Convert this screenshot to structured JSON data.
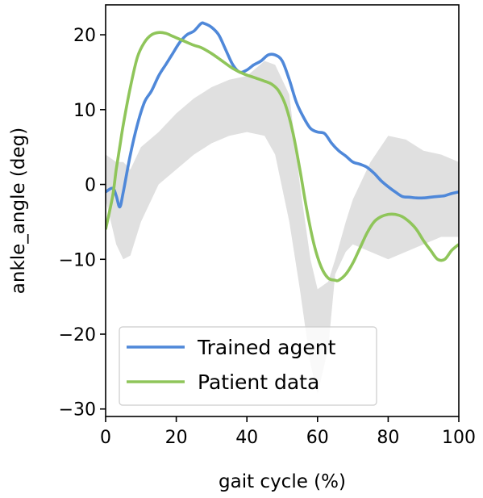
{
  "chart_data": {
    "type": "line",
    "xlabel": "gait cycle (%)",
    "ylabel": "ankle_angle (deg)",
    "xlim": [
      0,
      100
    ],
    "ylim": [
      -31,
      24
    ],
    "xticks": [
      0,
      20,
      40,
      60,
      80,
      100
    ],
    "yticks": [
      -30,
      -20,
      -10,
      0,
      10,
      20
    ],
    "grid": false,
    "legend_position": "lower-left",
    "band": {
      "color": "#e0e0e0",
      "x": [
        0,
        3,
        5,
        7,
        10,
        15,
        20,
        25,
        30,
        35,
        40,
        45,
        48,
        52,
        55,
        58,
        60,
        63,
        65,
        68,
        70,
        75,
        80,
        85,
        90,
        95,
        100
      ],
      "lower": [
        -2,
        -8,
        -10,
        -9.5,
        -5,
        0,
        2,
        4,
        5.5,
        6.5,
        7,
        6.5,
        4,
        -5,
        -14,
        -24,
        -28,
        -22,
        -12,
        -9,
        -8,
        -9,
        -10,
        -9,
        -8,
        -7,
        -7
      ],
      "upper": [
        4,
        3,
        3,
        2,
        5,
        7,
        9.5,
        11.5,
        13,
        14,
        14.5,
        16.5,
        16,
        12,
        0,
        -10,
        -14,
        -13,
        -10,
        -5,
        -2,
        3,
        6.5,
        6,
        4.5,
        4,
        3
      ]
    },
    "series": [
      {
        "name": "Trained agent",
        "color": "#4f88d9",
        "x": [
          0,
          2,
          3,
          4,
          5,
          7,
          9,
          11,
          13,
          15,
          17,
          19,
          21,
          23,
          25,
          27,
          28,
          30,
          32,
          34,
          36,
          38,
          40,
          42,
          44,
          46,
          48,
          50,
          52,
          54,
          56,
          58,
          60,
          62,
          64,
          66,
          68,
          70,
          72,
          74,
          76,
          78,
          80,
          82,
          84,
          86,
          88,
          90,
          92,
          94,
          96,
          98,
          100
        ],
        "y": [
          -1,
          -0.5,
          -1.5,
          -3,
          -1,
          4,
          8,
          11,
          12.5,
          14.5,
          16,
          17.5,
          19,
          20,
          20.5,
          21.5,
          21.5,
          21,
          20,
          18,
          16,
          15,
          15.3,
          16,
          16.5,
          17.3,
          17.3,
          16.5,
          14,
          11,
          9,
          7.5,
          7,
          6.8,
          5.5,
          4.5,
          3.8,
          3,
          2.7,
          2.3,
          1.5,
          0.5,
          -0.3,
          -1,
          -1.6,
          -1.7,
          -1.8,
          -1.8,
          -1.7,
          -1.6,
          -1.5,
          -1.2,
          -1
        ]
      },
      {
        "name": "Patient data",
        "color": "#8fc55a",
        "x": [
          0,
          2,
          3,
          4,
          5,
          7,
          9,
          11,
          13,
          15,
          17,
          19,
          21,
          23,
          25,
          27,
          30,
          33,
          36,
          39,
          42,
          45,
          47,
          49,
          51,
          53,
          55,
          57,
          59,
          61,
          63,
          65,
          66,
          68,
          70,
          72,
          74,
          76,
          78,
          80,
          82,
          84,
          86,
          88,
          90,
          92,
          94,
          96,
          98,
          100
        ],
        "y": [
          -6,
          -1.5,
          2,
          5,
          8,
          13,
          17,
          19,
          20,
          20.3,
          20.2,
          19.8,
          19.4,
          19,
          18.6,
          18.3,
          17.5,
          16.5,
          15.5,
          14.8,
          14.3,
          13.8,
          13.4,
          12.5,
          10.5,
          7,
          2,
          -3.5,
          -8,
          -11,
          -12.5,
          -12.8,
          -12.8,
          -12,
          -10.5,
          -8.5,
          -6.5,
          -5,
          -4.3,
          -4,
          -4,
          -4.3,
          -5,
          -6,
          -7.5,
          -8.8,
          -10,
          -10,
          -8.8,
          -8
        ]
      }
    ]
  }
}
